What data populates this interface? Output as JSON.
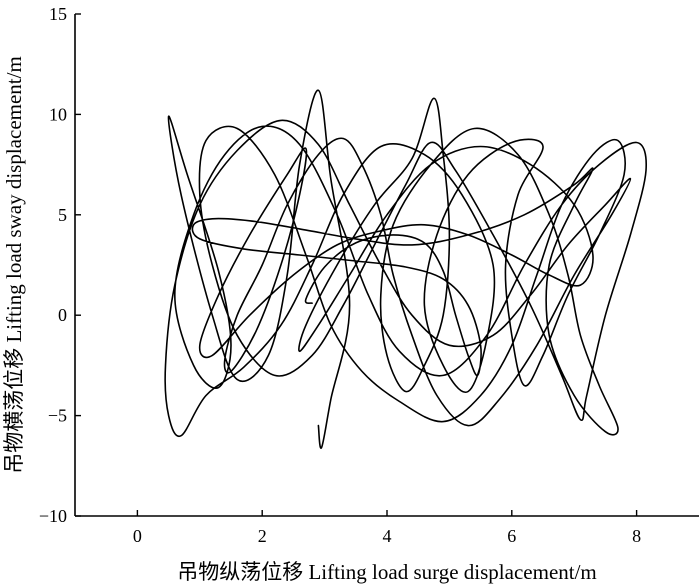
{
  "chart_data": {
    "type": "line",
    "title": "",
    "xlabel": "吊物纵荡位移 Lifting load surge displacement/m",
    "ylabel": "吊物横荡位移 Lifting load sway displacement/m",
    "xlim": [
      -1,
      9
    ],
    "ylim": [
      -10,
      15
    ],
    "xticks": [
      0,
      2,
      4,
      6,
      8
    ],
    "yticks": [
      -10,
      -5,
      0,
      5,
      10,
      15
    ],
    "grid": false,
    "legend": "none",
    "line_color": "#000000",
    "series": [
      {
        "points": [
          [
            2.9,
            -5.5
          ],
          [
            2.95,
            -6.6
          ],
          [
            3.1,
            -4.2
          ],
          [
            3.4,
            0.5
          ],
          [
            3.1,
            6.8
          ],
          [
            2.9,
            11.2
          ],
          [
            2.6,
            7.5
          ],
          [
            2.4,
            2.0
          ],
          [
            2.1,
            -2.0
          ],
          [
            1.6,
            -3.2
          ],
          [
            1.2,
            0.0
          ],
          [
            0.7,
            6.0
          ],
          [
            0.5,
            9.9
          ],
          [
            0.8,
            7.0
          ],
          [
            1.3,
            2.2
          ],
          [
            1.5,
            -1.5
          ],
          [
            1.3,
            -3.6
          ],
          [
            0.9,
            -2.5
          ],
          [
            0.6,
            1.0
          ],
          [
            0.9,
            5.0
          ],
          [
            1.4,
            8.0
          ],
          [
            2.0,
            9.4
          ],
          [
            2.6,
            8.5
          ],
          [
            3.2,
            5.0
          ],
          [
            3.7,
            1.0
          ],
          [
            4.2,
            -1.8
          ],
          [
            4.9,
            -3.0
          ],
          [
            5.6,
            -1.0
          ],
          [
            6.2,
            2.5
          ],
          [
            6.8,
            5.5
          ],
          [
            7.4,
            7.5
          ],
          [
            8.0,
            8.6
          ],
          [
            8.15,
            7.2
          ],
          [
            7.9,
            4.0
          ],
          [
            7.5,
            0.0
          ],
          [
            7.2,
            -4.0
          ],
          [
            7.1,
            -5.2
          ],
          [
            6.8,
            -3.0
          ],
          [
            6.3,
            0.5
          ],
          [
            5.7,
            4.0
          ],
          [
            5.1,
            7.2
          ],
          [
            4.7,
            8.6
          ],
          [
            4.3,
            6.5
          ],
          [
            3.8,
            3.5
          ],
          [
            3.3,
            0.5
          ],
          [
            2.8,
            -2.0
          ],
          [
            2.2,
            -3.0
          ],
          [
            1.6,
            -1.0
          ],
          [
            1.2,
            2.5
          ],
          [
            1.0,
            6.0
          ],
          [
            1.1,
            8.7
          ],
          [
            1.6,
            9.3
          ],
          [
            2.2,
            7.0
          ],
          [
            2.7,
            3.0
          ],
          [
            3.1,
            -0.5
          ],
          [
            3.6,
            -2.8
          ],
          [
            4.2,
            -4.3
          ],
          [
            4.9,
            -5.3
          ],
          [
            5.5,
            -4.0
          ],
          [
            6.0,
            -1.5
          ],
          [
            6.4,
            2.0
          ],
          [
            6.8,
            5.5
          ],
          [
            7.3,
            8.0
          ],
          [
            7.7,
            8.7
          ],
          [
            7.8,
            7.0
          ],
          [
            7.4,
            4.0
          ],
          [
            6.9,
            1.0
          ],
          [
            6.5,
            -2.0
          ],
          [
            6.2,
            -3.5
          ],
          [
            6.0,
            -1.0
          ],
          [
            5.9,
            2.5
          ],
          [
            6.1,
            6.0
          ],
          [
            6.5,
            8.4
          ],
          [
            6.0,
            8.6
          ],
          [
            5.3,
            7.0
          ],
          [
            4.8,
            4.0
          ],
          [
            4.6,
            0.5
          ],
          [
            4.9,
            -2.5
          ],
          [
            5.3,
            -3.8
          ],
          [
            5.6,
            -1.2
          ],
          [
            5.7,
            2.5
          ],
          [
            5.2,
            6.0
          ],
          [
            4.6,
            8.0
          ],
          [
            3.9,
            8.4
          ],
          [
            3.3,
            6.0
          ],
          [
            2.8,
            2.5
          ],
          [
            2.3,
            -0.5
          ],
          [
            1.7,
            -2.6
          ],
          [
            1.1,
            -4.0
          ],
          [
            0.7,
            -6.0
          ],
          [
            0.5,
            -5.0
          ],
          [
            0.45,
            -2.5
          ],
          [
            0.6,
            1.5
          ],
          [
            1.0,
            5.5
          ],
          [
            1.6,
            8.2
          ],
          [
            2.3,
            9.7
          ],
          [
            2.9,
            8.5
          ],
          [
            3.4,
            5.5
          ],
          [
            3.9,
            2.5
          ],
          [
            4.4,
            0.0
          ],
          [
            5.0,
            -1.5
          ],
          [
            5.7,
            -1.0
          ],
          [
            6.3,
            1.0
          ],
          [
            6.9,
            3.5
          ],
          [
            7.5,
            5.5
          ],
          [
            7.9,
            6.8
          ],
          [
            7.6,
            5.0
          ],
          [
            7.0,
            2.0
          ],
          [
            6.4,
            -1.5
          ],
          [
            5.8,
            -4.2
          ],
          [
            5.3,
            -5.5
          ],
          [
            4.8,
            -4.0
          ],
          [
            4.4,
            -1.0
          ],
          [
            4.1,
            2.0
          ],
          [
            3.9,
            5.0
          ],
          [
            3.6,
            7.5
          ],
          [
            3.3,
            8.8
          ],
          [
            2.9,
            8.0
          ],
          [
            2.4,
            5.5
          ],
          [
            2.0,
            2.5
          ],
          [
            1.6,
            0.0
          ],
          [
            1.4,
            -2.2
          ],
          [
            1.5,
            -2.8
          ],
          [
            1.9,
            -0.8
          ],
          [
            2.3,
            2.5
          ],
          [
            2.6,
            6.0
          ],
          [
            2.7,
            8.3
          ],
          [
            2.4,
            7.0
          ],
          [
            1.8,
            4.0
          ],
          [
            1.3,
            1.0
          ],
          [
            1.0,
            -1.5
          ],
          [
            1.2,
            -2.0
          ],
          [
            1.8,
            0.0
          ],
          [
            2.5,
            2.0
          ],
          [
            3.2,
            3.5
          ],
          [
            3.9,
            4.2
          ],
          [
            4.6,
            4.5
          ],
          [
            5.3,
            4.0
          ],
          [
            6.0,
            3.0
          ],
          [
            6.6,
            2.0
          ],
          [
            7.1,
            1.5
          ],
          [
            7.3,
            3.0
          ],
          [
            7.0,
            5.5
          ],
          [
            6.3,
            7.5
          ],
          [
            5.5,
            8.4
          ],
          [
            4.7,
            7.5
          ],
          [
            4.0,
            5.0
          ],
          [
            3.4,
            2.0
          ],
          [
            2.9,
            -0.5
          ],
          [
            2.6,
            -1.8
          ],
          [
            2.7,
            -0.5
          ],
          [
            3.2,
            2.5
          ],
          [
            3.8,
            5.5
          ],
          [
            4.4,
            7.8
          ],
          [
            4.75,
            10.8
          ],
          [
            4.9,
            8.0
          ],
          [
            5.0,
            4.0
          ],
          [
            4.9,
            0.0
          ],
          [
            4.6,
            -2.5
          ],
          [
            4.3,
            -3.8
          ],
          [
            4.0,
            -2.0
          ],
          [
            3.9,
            1.0
          ],
          [
            4.1,
            4.5
          ],
          [
            4.7,
            7.5
          ],
          [
            5.4,
            9.3
          ],
          [
            6.1,
            8.0
          ],
          [
            6.6,
            5.0
          ],
          [
            6.9,
            2.0
          ],
          [
            7.1,
            -1.0
          ],
          [
            7.4,
            -3.5
          ],
          [
            7.7,
            -5.6
          ],
          [
            7.5,
            -5.8
          ],
          [
            7.0,
            -4.0
          ],
          [
            6.6,
            -1.0
          ],
          [
            6.6,
            2.5
          ],
          [
            7.0,
            5.5
          ],
          [
            7.3,
            7.3
          ],
          [
            7.0,
            6.5
          ],
          [
            6.2,
            5.0
          ],
          [
            5.3,
            4.0
          ],
          [
            4.4,
            3.5
          ],
          [
            3.5,
            3.8
          ],
          [
            2.6,
            4.3
          ],
          [
            1.8,
            4.7
          ],
          [
            1.2,
            4.8
          ],
          [
            0.9,
            4.5
          ],
          [
            1.0,
            3.8
          ],
          [
            1.7,
            3.3
          ],
          [
            2.6,
            3.0
          ],
          [
            3.5,
            2.7
          ],
          [
            4.3,
            2.4
          ],
          [
            4.9,
            1.8
          ],
          [
            5.3,
            0.5
          ],
          [
            5.5,
            -1.5
          ],
          [
            5.45,
            -3.0
          ],
          [
            5.3,
            -2.0
          ],
          [
            5.1,
            0.0
          ],
          [
            4.9,
            2.2
          ],
          [
            4.6,
            3.6
          ],
          [
            4.1,
            4.0
          ],
          [
            3.5,
            3.6
          ],
          [
            3.0,
            2.4
          ],
          [
            2.7,
            0.8
          ],
          [
            2.8,
            0.6
          ]
        ]
      }
    ]
  }
}
